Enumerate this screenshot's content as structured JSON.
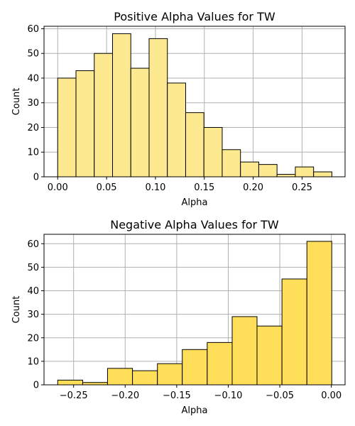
{
  "chart_data": [
    {
      "type": "bar",
      "title": "Positive Alpha Values for TW",
      "xlabel": "Alpha",
      "ylabel": "Count",
      "bar_color": "#fde98f",
      "edge_color": "#000000",
      "grid": true,
      "xlim": [
        -0.014,
        0.294
      ],
      "ylim": [
        0,
        61
      ],
      "xticks": [
        0.0,
        0.05,
        0.1,
        0.15,
        0.2,
        0.25
      ],
      "xtick_labels": [
        "0.00",
        "0.05",
        "0.10",
        "0.15",
        "0.20",
        "0.25"
      ],
      "yticks": [
        0,
        10,
        20,
        30,
        40,
        50,
        60
      ],
      "ytick_labels": [
        "0",
        "10",
        "20",
        "30",
        "40",
        "50",
        "60"
      ],
      "bin_edges": [
        0.0,
        0.0187,
        0.0374,
        0.0561,
        0.0748,
        0.0935,
        0.1122,
        0.1309,
        0.1496,
        0.1683,
        0.187,
        0.2057,
        0.2244,
        0.2431,
        0.2618,
        0.2805
      ],
      "values": [
        40,
        43,
        50,
        58,
        44,
        56,
        38,
        26,
        20,
        11,
        6,
        5,
        1,
        4,
        2
      ]
    },
    {
      "type": "bar",
      "title": "Negative Alpha Values for TW",
      "xlabel": "Alpha",
      "ylabel": "Count",
      "bar_color": "#ffdf5a",
      "edge_color": "#000000",
      "grid": true,
      "xlim": [
        -0.2787,
        0.0133
      ],
      "ylim": [
        0,
        64
      ],
      "xticks": [
        -0.25,
        -0.2,
        -0.15,
        -0.1,
        -0.05,
        0.0
      ],
      "xtick_labels": [
        "−0.25",
        "−0.20",
        "−0.15",
        "−0.10",
        "−0.05",
        "0.00"
      ],
      "yticks": [
        0,
        10,
        20,
        30,
        40,
        50,
        60
      ],
      "ytick_labels": [
        "0",
        "10",
        "20",
        "30",
        "40",
        "50",
        "60"
      ],
      "bin_edges": [
        -0.2654,
        -0.2412,
        -0.2171,
        -0.1929,
        -0.1687,
        -0.1446,
        -0.1204,
        -0.0962,
        -0.0721,
        -0.0479,
        -0.0237,
        0.0004
      ],
      "values": [
        2,
        1,
        7,
        6,
        9,
        15,
        18,
        29,
        25,
        45,
        61
      ]
    }
  ]
}
